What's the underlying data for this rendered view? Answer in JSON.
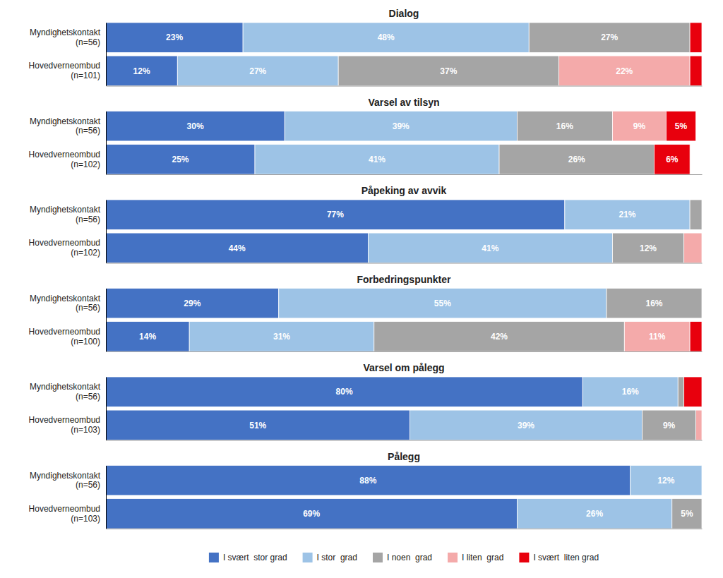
{
  "chart_data": [
    {
      "type": "bar",
      "orientation": "horizontal",
      "stacked": true,
      "data_labels": true,
      "tick_labels": "y",
      "title": "Dialog",
      "categories": [
        "Myndighetskontakt\n(n=56)",
        "Hovedverneombud\n(n=101)"
      ],
      "xlim": [
        0,
        100
      ],
      "series": [
        {
          "name": "I svært  stor grad",
          "color": "#4472C4",
          "values": [
            23,
            12
          ],
          "value_labels": [
            "23%",
            "12%"
          ]
        },
        {
          "name": "I stor  grad",
          "color": "#9DC3E6",
          "values": [
            48,
            27
          ],
          "value_labels": [
            "48%",
            "27%"
          ]
        },
        {
          "name": "I noen  grad",
          "color": "#A5A5A5",
          "values": [
            27,
            37
          ],
          "value_labels": [
            "27%",
            "37%"
          ]
        },
        {
          "name": "I liten  grad",
          "color": "#F4AAAA",
          "values": [
            0,
            22
          ],
          "value_labels": [
            null,
            "22%"
          ]
        },
        {
          "name": "I svært  liten grad",
          "color": "#E8000D",
          "values": [
            2,
            2
          ],
          "value_labels": [
            null,
            null
          ]
        }
      ]
    },
    {
      "type": "bar",
      "orientation": "horizontal",
      "stacked": true,
      "data_labels": true,
      "tick_labels": "y",
      "title": "Varsel av tilsyn",
      "categories": [
        "Myndighetskontakt\n(n=56)",
        "Hovedverneombud\n(n=102)"
      ],
      "xlim": [
        0,
        100
      ],
      "series": [
        {
          "name": "I svært  stor grad",
          "color": "#4472C4",
          "values": [
            30,
            25
          ],
          "value_labels": [
            "30%",
            "25%"
          ]
        },
        {
          "name": "I stor  grad",
          "color": "#9DC3E6",
          "values": [
            39,
            41
          ],
          "value_labels": [
            "39%",
            "41%"
          ]
        },
        {
          "name": "I noen  grad",
          "color": "#A5A5A5",
          "values": [
            16,
            26
          ],
          "value_labels": [
            "16%",
            "26%"
          ]
        },
        {
          "name": "I liten  grad",
          "color": "#F4AAAA",
          "values": [
            9,
            0
          ],
          "value_labels": [
            "9%",
            null
          ]
        },
        {
          "name": "I svært  liten grad",
          "color": "#E8000D",
          "values": [
            5,
            6
          ],
          "value_labels": [
            "5%",
            "6%"
          ]
        }
      ]
    },
    {
      "type": "bar",
      "orientation": "horizontal",
      "stacked": true,
      "data_labels": true,
      "tick_labels": "y",
      "title": "Påpeking av avvik",
      "categories": [
        "Myndighetskontakt\n(n=56)",
        "Hovedverneombud\n(n=102)"
      ],
      "xlim": [
        0,
        100
      ],
      "series": [
        {
          "name": "I svært  stor grad",
          "color": "#4472C4",
          "values": [
            77,
            44
          ],
          "value_labels": [
            "77%",
            "44%"
          ]
        },
        {
          "name": "I stor  grad",
          "color": "#9DC3E6",
          "values": [
            21,
            41
          ],
          "value_labels": [
            "21%",
            "41%"
          ]
        },
        {
          "name": "I noen  grad",
          "color": "#A5A5A5",
          "values": [
            2,
            12
          ],
          "value_labels": [
            null,
            "12%"
          ]
        },
        {
          "name": "I liten  grad",
          "color": "#F4AAAA",
          "values": [
            0,
            3
          ],
          "value_labels": [
            null,
            null
          ]
        },
        {
          "name": "I svært  liten grad",
          "color": "#E8000D",
          "values": [
            0,
            0
          ],
          "value_labels": [
            null,
            null
          ]
        }
      ]
    },
    {
      "type": "bar",
      "orientation": "horizontal",
      "stacked": true,
      "data_labels": true,
      "tick_labels": "y",
      "title": "Forbedringspunkter",
      "categories": [
        "Myndighetskontakt\n(n=56)",
        "Hovedverneombud\n(n=100)"
      ],
      "xlim": [
        0,
        100
      ],
      "series": [
        {
          "name": "I svært  stor grad",
          "color": "#4472C4",
          "values": [
            29,
            14
          ],
          "value_labels": [
            "29%",
            "14%"
          ]
        },
        {
          "name": "I stor  grad",
          "color": "#9DC3E6",
          "values": [
            55,
            31
          ],
          "value_labels": [
            "55%",
            "31%"
          ]
        },
        {
          "name": "I noen  grad",
          "color": "#A5A5A5",
          "values": [
            16,
            42
          ],
          "value_labels": [
            "16%",
            "42%"
          ]
        },
        {
          "name": "I liten  grad",
          "color": "#F4AAAA",
          "values": [
            0,
            11
          ],
          "value_labels": [
            null,
            "11%"
          ]
        },
        {
          "name": "I svært  liten grad",
          "color": "#E8000D",
          "values": [
            0,
            2
          ],
          "value_labels": [
            null,
            null
          ]
        }
      ]
    },
    {
      "type": "bar",
      "orientation": "horizontal",
      "stacked": true,
      "data_labels": true,
      "tick_labels": "y",
      "title": "Varsel om pålegg",
      "categories": [
        "Myndighetskontakt\n(n=56)",
        "Hovedverneombud\n(n=103)"
      ],
      "xlim": [
        0,
        100
      ],
      "series": [
        {
          "name": "I svært  stor grad",
          "color": "#4472C4",
          "values": [
            80,
            51
          ],
          "value_labels": [
            "80%",
            "51%"
          ]
        },
        {
          "name": "I stor  grad",
          "color": "#9DC3E6",
          "values": [
            16,
            39
          ],
          "value_labels": [
            "16%",
            "39%"
          ]
        },
        {
          "name": "I noen  grad",
          "color": "#A5A5A5",
          "values": [
            1,
            9
          ],
          "value_labels": [
            null,
            "9%"
          ]
        },
        {
          "name": "I liten  grad",
          "color": "#F4AAAA",
          "values": [
            0,
            1
          ],
          "value_labels": [
            null,
            null
          ]
        },
        {
          "name": "I svært  liten grad",
          "color": "#E8000D",
          "values": [
            3,
            0
          ],
          "value_labels": [
            null,
            null
          ]
        }
      ]
    },
    {
      "type": "bar",
      "orientation": "horizontal",
      "stacked": true,
      "data_labels": true,
      "tick_labels": "y",
      "title": "Pålegg",
      "legend": "bottom",
      "categories": [
        "Myndighetskontakt\n(n=56)",
        "Hovedverneombud\n(n=103)"
      ],
      "xlim": [
        0,
        100
      ],
      "series": [
        {
          "name": "I svært  stor grad",
          "color": "#4472C4",
          "values": [
            88,
            69
          ],
          "value_labels": [
            "88%",
            "69%"
          ]
        },
        {
          "name": "I stor  grad",
          "color": "#9DC3E6",
          "values": [
            12,
            26
          ],
          "value_labels": [
            "12%",
            "26%"
          ]
        },
        {
          "name": "I noen  grad",
          "color": "#A5A5A5",
          "values": [
            0,
            5
          ],
          "value_labels": [
            null,
            "5%"
          ]
        },
        {
          "name": "I liten  grad",
          "color": "#F4AAAA",
          "values": [
            0,
            0
          ],
          "value_labels": [
            null,
            null
          ]
        },
        {
          "name": "I svært  liten grad",
          "color": "#E8000D",
          "values": [
            0,
            0
          ],
          "value_labels": [
            null,
            null
          ]
        }
      ]
    }
  ]
}
